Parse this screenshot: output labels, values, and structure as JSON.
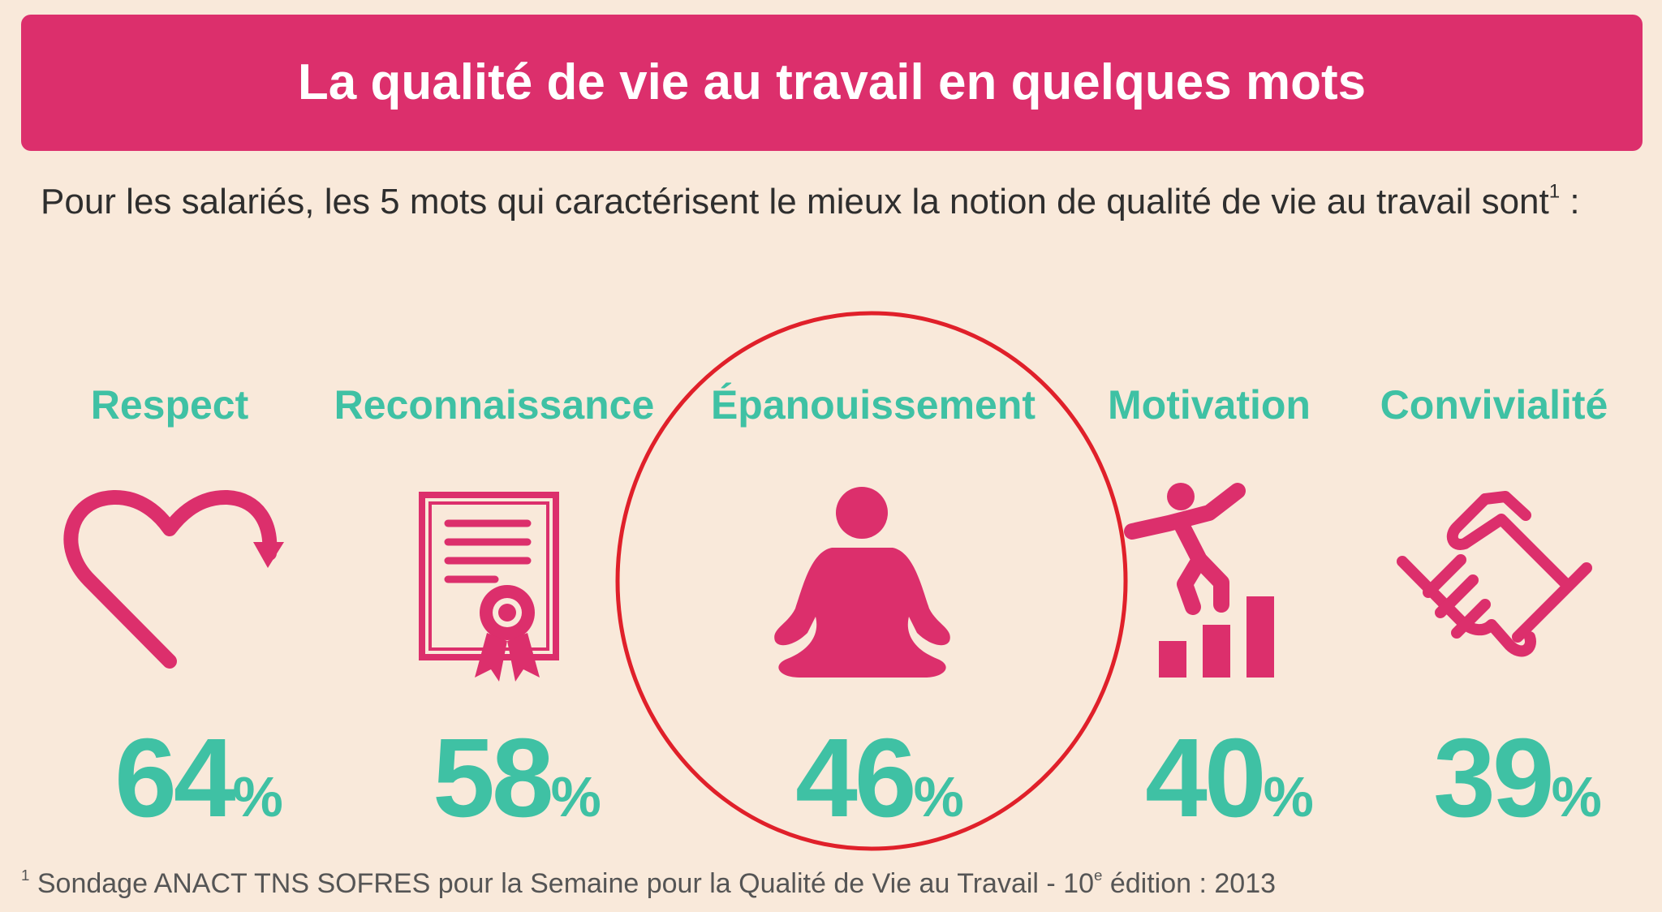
{
  "header": {
    "title": "La qualité de vie au travail en quelques mots"
  },
  "intro": {
    "text": "Pour les salariés, les 5 mots qui caractérisent le mieux la notion de qualité de vie au travail sont",
    "note_ref": "1",
    "tail": " :"
  },
  "items": [
    {
      "label": "Respect",
      "number": "64",
      "unit": "%"
    },
    {
      "label": "Reconnaissance",
      "number": "58",
      "unit": "%"
    },
    {
      "label": "Épanouissement",
      "number": "46",
      "unit": "%"
    },
    {
      "label": "Motivation",
      "number": "40",
      "unit": "%"
    },
    {
      "label": "Convivialité",
      "number": "39",
      "unit": "%"
    }
  ],
  "footnote": {
    "marker": "1",
    "text": " Sondage ANACT TNS SOFRES pour la Semaine pour la Qualité de Vie au Travail - 10",
    "sup": "e",
    "tail": " édition : 2013"
  }
}
